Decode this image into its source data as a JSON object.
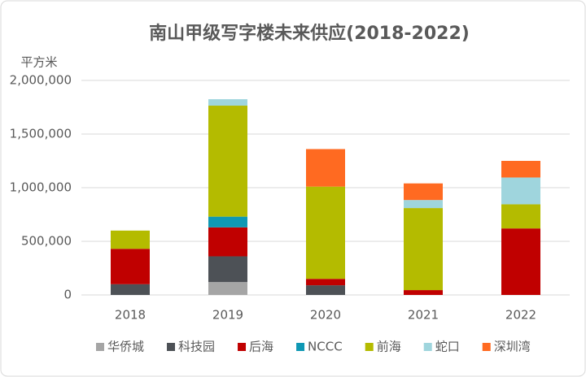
{
  "chart_data": {
    "type": "stacked-bar",
    "title": "南山甲级写字楼未来供应(2018-2022)",
    "y_label": "平方米",
    "categories": [
      "2018",
      "2019",
      "2020",
      "2021",
      "2022"
    ],
    "series": [
      {
        "name": "华侨城",
        "color": "#a5a5a5",
        "values": [
          0,
          120000,
          0,
          0,
          0
        ]
      },
      {
        "name": "科技园",
        "color": "#4d5156",
        "values": [
          100000,
          240000,
          90000,
          0,
          0
        ]
      },
      {
        "name": "后海",
        "color": "#c00000",
        "values": [
          330000,
          270000,
          60000,
          45000,
          620000
        ]
      },
      {
        "name": "NCCC",
        "color": "#0f98b4",
        "values": [
          0,
          100000,
          0,
          0,
          0
        ]
      },
      {
        "name": "前海",
        "color": "#b4bb00",
        "values": [
          170000,
          1035000,
          860000,
          765000,
          225000
        ]
      },
      {
        "name": "蛇口",
        "color": "#9fd5dd",
        "values": [
          0,
          60000,
          0,
          75000,
          250000
        ]
      },
      {
        "name": "深圳湾",
        "color": "#ff6a21",
        "values": [
          0,
          0,
          350000,
          155000,
          155000
        ]
      }
    ],
    "ylim": [
      0,
      2000000
    ],
    "yticks": [
      0,
      {
        "value": 500000,
        "label": "500,000"
      },
      {
        "value": 1000000,
        "label": "1,000,000"
      },
      {
        "value": 1500000,
        "label": "1,500,000"
      },
      {
        "value": 2000000,
        "label": "2,000,000"
      }
    ],
    "grid": true,
    "legend": "bottom"
  }
}
